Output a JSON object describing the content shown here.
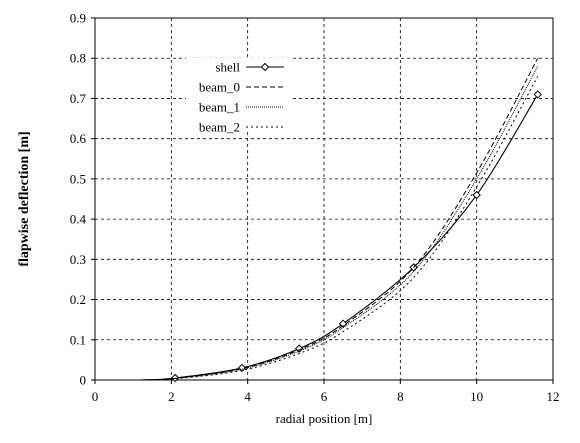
{
  "chart_data": {
    "type": "line",
    "title": "",
    "xlabel": "radial position [m]",
    "ylabel": "flapwise deflection [m]",
    "xlim": [
      0,
      12
    ],
    "ylim": [
      0,
      0.9
    ],
    "xticks": [
      0,
      2,
      4,
      6,
      8,
      10,
      12
    ],
    "yticks": [
      0,
      0.1,
      0.2,
      0.3,
      0.4,
      0.5,
      0.6,
      0.7,
      0.8,
      0.9
    ],
    "xtick_labels": [
      "0",
      "2",
      "4",
      "6",
      "8",
      "10",
      "12"
    ],
    "ytick_labels": [
      "0",
      "0.1",
      "0.2",
      "0.3",
      "0.4",
      "0.5",
      "0.6",
      "0.7",
      "0.8",
      "0.9"
    ],
    "grid": true,
    "legend_position": "top-left",
    "series": [
      {
        "name": "shell",
        "style": "solid-diamond",
        "x": [
          1.2,
          2.1,
          3.85,
          5.35,
          6.5,
          8.35,
          10.0,
          11.6
        ],
        "y": [
          0.0,
          0.005,
          0.03,
          0.078,
          0.14,
          0.28,
          0.46,
          0.71
        ]
      },
      {
        "name": "beam_0",
        "style": "dashed",
        "x": [
          1.2,
          2.1,
          3.85,
          5.35,
          6.5,
          8.35,
          10.0,
          11.6
        ],
        "y": [
          0.0,
          0.004,
          0.028,
          0.075,
          0.135,
          0.28,
          0.515,
          0.8
        ]
      },
      {
        "name": "beam_1",
        "style": "densely-dotted",
        "x": [
          1.2,
          2.1,
          3.85,
          5.35,
          6.5,
          8.35,
          10.0,
          11.6
        ],
        "y": [
          0.0,
          0.004,
          0.027,
          0.072,
          0.13,
          0.27,
          0.5,
          0.78
        ]
      },
      {
        "name": "beam_2",
        "style": "sparse-dotted",
        "x": [
          1.2,
          2.1,
          3.85,
          5.35,
          6.5,
          8.35,
          10.0,
          11.6
        ],
        "y": [
          0.0,
          0.003,
          0.024,
          0.066,
          0.12,
          0.255,
          0.48,
          0.755
        ]
      }
    ]
  }
}
